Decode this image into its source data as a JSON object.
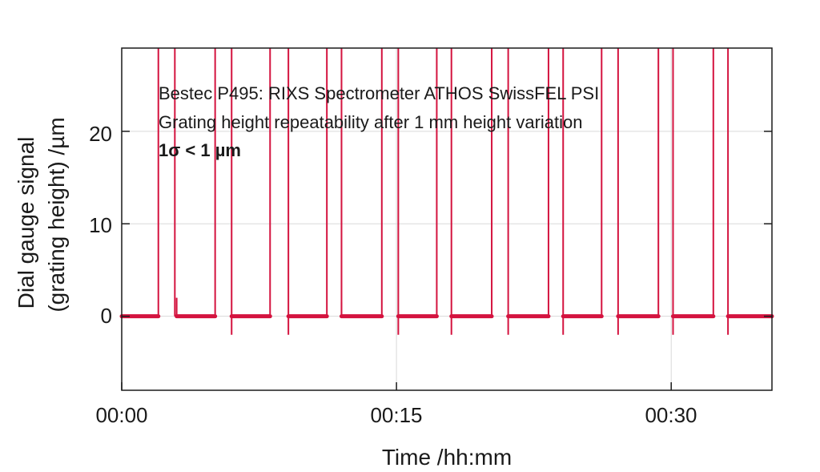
{
  "chart_data": {
    "type": "line",
    "xlabel": "Time /hh:mm",
    "ylabel_line1": "Dial gauge signal",
    "ylabel_line2": "(grating height) /µm",
    "xlim_minutes": [
      0,
      35.5
    ],
    "ylim": [
      -8,
      29
    ],
    "x_ticks": [
      {
        "minutes": 0,
        "label": "00:00"
      },
      {
        "minutes": 15,
        "label": "00:15"
      },
      {
        "minutes": 30,
        "label": "00:30"
      }
    ],
    "y_ticks": [
      {
        "value": 0,
        "label": "0"
      },
      {
        "value": 10,
        "label": "10"
      },
      {
        "value": 20,
        "label": "20"
      }
    ],
    "grid": true,
    "series": [
      {
        "color": "#d4133f",
        "segments_minutes": [
          [
            0,
            2.0
          ],
          [
            3.0,
            5.1
          ],
          [
            6.0,
            8.1
          ],
          [
            9.1,
            11.2
          ],
          [
            12.0,
            14.2
          ],
          [
            15.1,
            17.2
          ],
          [
            18.0,
            20.2
          ],
          [
            21.1,
            23.3
          ],
          [
            24.1,
            26.2
          ],
          [
            27.1,
            29.3
          ],
          [
            30.1,
            32.3
          ],
          [
            33.1,
            35.5
          ]
        ],
        "baseline_value": 0,
        "spikes": [
          {
            "minutes": 2.0,
            "value": 29
          },
          {
            "minutes": 2.9,
            "value": 29
          },
          {
            "minutes": 5.1,
            "value": 29
          },
          {
            "minutes": 6.0,
            "value": 29
          },
          {
            "minutes": 8.1,
            "value": 29
          },
          {
            "minutes": 9.1,
            "value": 29
          },
          {
            "minutes": 11.2,
            "value": 29
          },
          {
            "minutes": 12.0,
            "value": 29
          },
          {
            "minutes": 14.2,
            "value": 29
          },
          {
            "minutes": 15.1,
            "value": 29
          },
          {
            "minutes": 17.2,
            "value": 29
          },
          {
            "minutes": 18.0,
            "value": 29
          },
          {
            "minutes": 20.2,
            "value": 29
          },
          {
            "minutes": 21.1,
            "value": 29
          },
          {
            "minutes": 23.3,
            "value": 29
          },
          {
            "minutes": 24.1,
            "value": 29
          },
          {
            "minutes": 26.2,
            "value": 29
          },
          {
            "minutes": 27.1,
            "value": 29
          },
          {
            "minutes": 29.3,
            "value": 29
          },
          {
            "minutes": 30.1,
            "value": 29
          },
          {
            "minutes": 32.3,
            "value": 29
          },
          {
            "minutes": 33.1,
            "value": 29
          }
        ],
        "dips": [
          {
            "minutes": 3.0,
            "value": 2
          },
          {
            "minutes": 6.0,
            "value": -2
          },
          {
            "minutes": 9.1,
            "value": -2
          },
          {
            "minutes": 12.0,
            "value": 1.5
          },
          {
            "minutes": 15.1,
            "value": -2
          },
          {
            "minutes": 18.0,
            "value": -2
          },
          {
            "minutes": 21.1,
            "value": -2
          },
          {
            "minutes": 24.1,
            "value": -2
          },
          {
            "minutes": 27.1,
            "value": -2
          },
          {
            "minutes": 30.1,
            "value": -2
          },
          {
            "minutes": 33.1,
            "value": -2
          }
        ]
      }
    ],
    "annotations": [
      "Bestec P495: RIXS Spectrometer ATHOS SwissFEL PSI",
      "Grating height repeatability after 1 mm height variation",
      "1σ < 1 µm"
    ]
  }
}
